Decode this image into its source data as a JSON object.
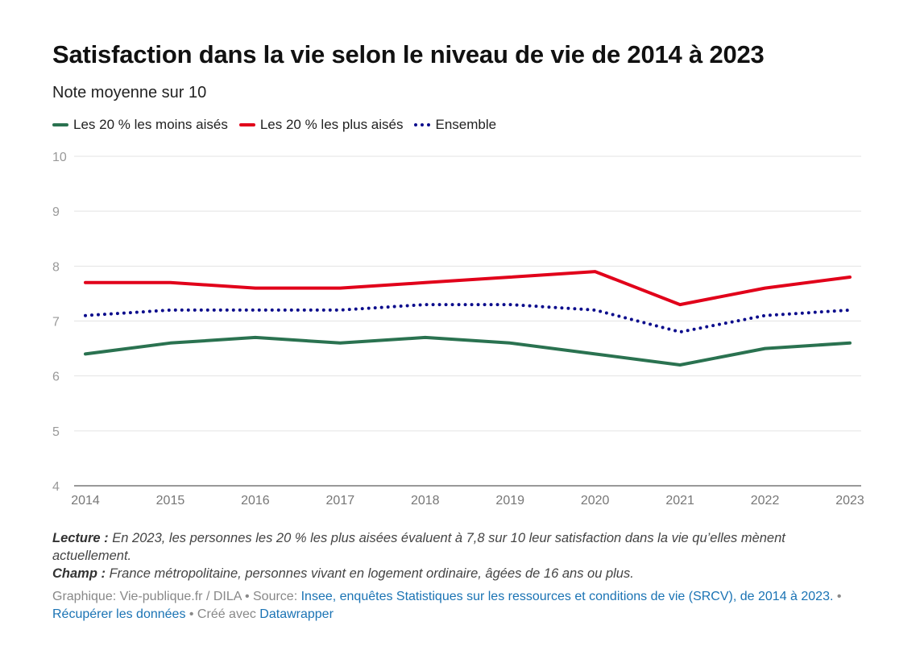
{
  "title": "Satisfaction dans la vie selon le niveau de vie de 2014 à 2023",
  "subtitle": "Note moyenne sur 10",
  "notes": {
    "lecture_label": "Lecture :",
    "lecture_text": " En 2023, les personnes les 20 % les plus aisées évaluent à 7,8 sur 10 leur satisfaction dans la vie qu’elles mènent actuellement.",
    "champ_label": "Champ :",
    "champ_text": " France métropolitaine, personnes vivant en logement ordinaire, âgées de 16 ans ou plus."
  },
  "footer": {
    "credit": "Graphique: Vie-publique.fr / DILA",
    "sep1": " • Source: ",
    "source_link": "Insee, enquêtes Statistiques sur les ressources et conditions de vie (SRCV), de 2014 à 2023.",
    "sep2": " • ",
    "download_link": "Récupérer les données",
    "sep3": " • Créé avec ",
    "tool_link": "Datawrapper"
  },
  "chart_data": {
    "type": "line",
    "x": [
      2014,
      2015,
      2016,
      2017,
      2018,
      2019,
      2020,
      2021,
      2022,
      2023
    ],
    "ylim": [
      4,
      10
    ],
    "yticks": [
      4,
      5,
      6,
      7,
      8,
      9,
      10
    ],
    "grid": true,
    "legend_position": "top-left",
    "series": [
      {
        "name": "Les 20 % les moins aisés",
        "color": "#2a7250",
        "style": "solid",
        "values": [
          6.4,
          6.6,
          6.7,
          6.6,
          6.7,
          6.6,
          6.4,
          6.2,
          6.5,
          6.6
        ]
      },
      {
        "name": "Les 20 % les plus aisés",
        "color": "#e1001a",
        "style": "solid",
        "values": [
          7.7,
          7.7,
          7.6,
          7.6,
          7.7,
          7.8,
          7.9,
          7.3,
          7.6,
          7.8
        ]
      },
      {
        "name": "Ensemble",
        "color": "#0b0c8c",
        "style": "dotted",
        "values": [
          7.1,
          7.2,
          7.2,
          7.2,
          7.3,
          7.3,
          7.2,
          6.8,
          7.1,
          7.2
        ]
      }
    ]
  }
}
